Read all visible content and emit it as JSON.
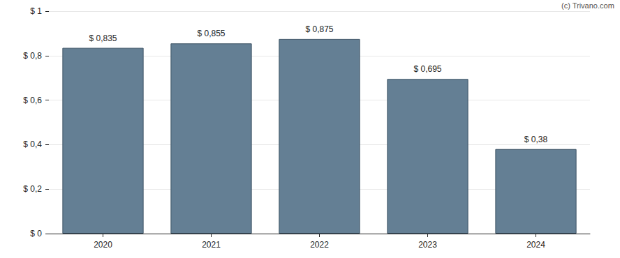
{
  "chart_data": {
    "type": "bar",
    "annotations": [
      "(c) Trivano.com"
    ],
    "categories": [
      "2020",
      "2021",
      "2022",
      "2023",
      "2024"
    ],
    "values": [
      0.835,
      0.855,
      0.875,
      0.695,
      0.38
    ],
    "value_labels": [
      "$ 0,835",
      "$ 0,855",
      "$ 0,875",
      "$ 0,695",
      "$ 0,38"
    ],
    "color": "#647f94",
    "ylim": [
      0,
      1
    ],
    "yticks": [
      {
        "value": 0,
        "label": "$ 0"
      },
      {
        "value": 0.2,
        "label": "$ 0,2"
      },
      {
        "value": 0.4,
        "label": "$ 0,4"
      },
      {
        "value": 0.6,
        "label": "$ 0,6"
      },
      {
        "value": 0.8,
        "label": "$ 0,8"
      },
      {
        "value": 1,
        "label": "$ 1"
      }
    ],
    "grid": true,
    "data_labels": true
  }
}
